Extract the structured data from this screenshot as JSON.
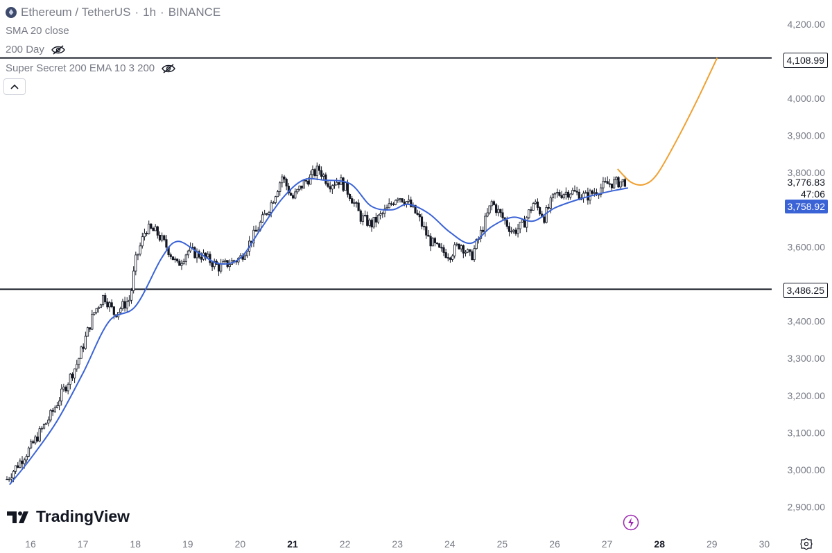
{
  "header": {
    "symbol": "Ethereum / TetherUS",
    "interval": "1h",
    "exchange": "BINANCE",
    "dot": "·",
    "indicators": [
      "SMA 20 close",
      "200 Day",
      "Super Secret 200 EMA 10 3 200"
    ]
  },
  "price_axis": {
    "labels": [
      "4,200.00",
      "4,000.00",
      "3,900.00",
      "3,800.00",
      "3,600.00",
      "3,400.00",
      "3,300.00",
      "3,200.00",
      "3,100.00",
      "3,000.00",
      "2,900.00"
    ]
  },
  "time_axis": {
    "labels": [
      "16",
      "17",
      "18",
      "19",
      "20",
      "21",
      "22",
      "23",
      "24",
      "25",
      "26",
      "27",
      "28",
      "29",
      "30"
    ]
  },
  "price_labels": {
    "upper_line": "4,108.99",
    "lower_line": "3,486.25",
    "last_price": "3,776.83",
    "countdown": "47:06",
    "sma_value": "3,758.92"
  },
  "brand": {
    "name": "TradingView"
  },
  "colors": {
    "sma": "#3a63d6",
    "projection": "#f0a030",
    "candle": "#131722",
    "hline": "#131722",
    "bolt": "#9c27b0"
  },
  "chart_data": {
    "type": "candlestick",
    "symbol": "Ethereum / TetherUS",
    "interval": "1h",
    "y_range": [
      2850,
      4250
    ],
    "x_range_days": [
      15.5,
      30.6
    ],
    "horizontal_lines": [
      4108.99,
      3486.25
    ],
    "sma20_path": [
      {
        "day": 15.6,
        "price": 2960
      },
      {
        "day": 16.0,
        "price": 3030
      },
      {
        "day": 16.5,
        "price": 3130
      },
      {
        "day": 17.0,
        "price": 3260
      },
      {
        "day": 17.5,
        "price": 3400
      },
      {
        "day": 18.0,
        "price": 3440
      },
      {
        "day": 18.5,
        "price": 3570
      },
      {
        "day": 18.8,
        "price": 3615
      },
      {
        "day": 19.2,
        "price": 3585
      },
      {
        "day": 19.6,
        "price": 3555
      },
      {
        "day": 20.0,
        "price": 3570
      },
      {
        "day": 20.4,
        "price": 3650
      },
      {
        "day": 20.8,
        "price": 3730
      },
      {
        "day": 21.2,
        "price": 3780
      },
      {
        "day": 21.6,
        "price": 3780
      },
      {
        "day": 22.1,
        "price": 3770
      },
      {
        "day": 22.5,
        "price": 3710
      },
      {
        "day": 22.9,
        "price": 3700
      },
      {
        "day": 23.2,
        "price": 3715
      },
      {
        "day": 23.6,
        "price": 3690
      },
      {
        "day": 24.0,
        "price": 3640
      },
      {
        "day": 24.4,
        "price": 3610
      },
      {
        "day": 24.8,
        "price": 3655
      },
      {
        "day": 25.2,
        "price": 3680
      },
      {
        "day": 25.6,
        "price": 3670
      },
      {
        "day": 26.0,
        "price": 3705
      },
      {
        "day": 26.5,
        "price": 3730
      },
      {
        "day": 27.0,
        "price": 3748
      },
      {
        "day": 27.4,
        "price": 3758.92
      }
    ],
    "projection_path": [
      {
        "day": 27.2,
        "price": 3810
      },
      {
        "day": 27.45,
        "price": 3775
      },
      {
        "day": 27.7,
        "price": 3768
      },
      {
        "day": 27.95,
        "price": 3795
      },
      {
        "day": 28.3,
        "price": 3880
      },
      {
        "day": 28.7,
        "price": 3990
      },
      {
        "day": 29.1,
        "price": 4108.99
      }
    ],
    "last_price": 3776.83,
    "sma_last": 3758.92
  }
}
